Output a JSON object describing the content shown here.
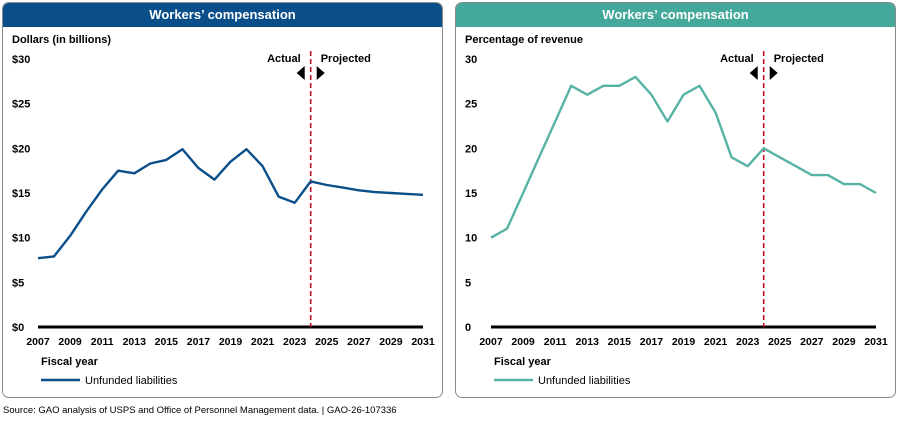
{
  "source": "Source: GAO analysis of USPS and Office of Personnel Management data.  |  GAO-26-107336",
  "chart_data": [
    {
      "type": "line",
      "title": "Workers’ compensation",
      "ylabel": "Dollars (in billions)",
      "xlabel": "Fiscal year",
      "header_color": "#0b4f8a",
      "line_color": "#0b4f8a",
      "divider_color": "#c8102e",
      "ylim": [
        0,
        30
      ],
      "yticks": [
        0,
        5,
        10,
        15,
        20,
        25,
        30
      ],
      "ytick_labels": [
        "$0",
        "$5",
        "$10",
        "$15",
        "$20",
        "$25",
        "$30"
      ],
      "xlim": [
        2007,
        2031
      ],
      "xticks": [
        2007,
        2009,
        2011,
        2013,
        2015,
        2017,
        2019,
        2021,
        2023,
        2025,
        2027,
        2029,
        2031
      ],
      "divider_x": 2024,
      "actual_label": "Actual",
      "projected_label": "Projected",
      "series": [
        {
          "name": "Unfunded liabilities",
          "x": [
            2007,
            2008,
            2009,
            2010,
            2011,
            2012,
            2013,
            2014,
            2015,
            2016,
            2017,
            2018,
            2019,
            2020,
            2021,
            2022,
            2023,
            2024,
            2025,
            2026,
            2027,
            2028,
            2029,
            2030,
            2031
          ],
          "values": [
            7.7,
            7.9,
            10.2,
            12.9,
            15.4,
            17.5,
            17.2,
            18.3,
            18.7,
            19.9,
            17.8,
            16.5,
            18.5,
            19.9,
            18.0,
            14.6,
            13.9,
            16.3,
            15.9,
            15.6,
            15.3,
            15.1,
            15.0,
            14.9,
            14.8
          ]
        }
      ]
    },
    {
      "type": "line",
      "title": "Workers’ compensation",
      "ylabel": "Percentage of revenue",
      "xlabel": "Fiscal year",
      "header_color": "#44a89a",
      "line_color": "#58b3a6",
      "divider_color": "#c8102e",
      "ylim": [
        0,
        30
      ],
      "yticks": [
        0,
        5,
        10,
        15,
        20,
        25,
        30
      ],
      "ytick_labels": [
        "0",
        "5",
        "10",
        "15",
        "20",
        "25",
        "30"
      ],
      "xlim": [
        2007,
        2031
      ],
      "xticks": [
        2007,
        2009,
        2011,
        2013,
        2015,
        2017,
        2019,
        2021,
        2023,
        2025,
        2027,
        2029,
        2031
      ],
      "divider_x": 2024,
      "actual_label": "Actual",
      "projected_label": "Projected",
      "series": [
        {
          "name": "Unfunded liabilities",
          "x": [
            2007,
            2008,
            2009,
            2010,
            2011,
            2012,
            2013,
            2014,
            2015,
            2016,
            2017,
            2018,
            2019,
            2020,
            2021,
            2022,
            2023,
            2024,
            2025,
            2026,
            2027,
            2028,
            2029,
            2030,
            2031
          ],
          "values": [
            10,
            11,
            15,
            19,
            23,
            27,
            26,
            27,
            27,
            28,
            26,
            23,
            26,
            27,
            24,
            19,
            18,
            20,
            19,
            18,
            17,
            17,
            16,
            16,
            15
          ]
        }
      ]
    }
  ]
}
